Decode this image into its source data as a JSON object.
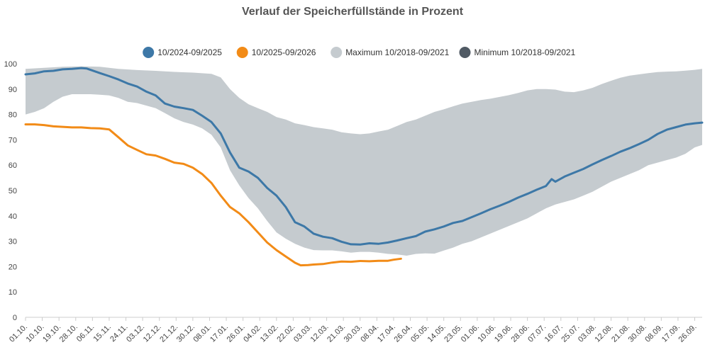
{
  "chart_data": {
    "type": "area",
    "title": "Verlauf der Speicherfüllstände in Prozent",
    "xlabel": "",
    "ylabel": "",
    "ylim": [
      0,
      100
    ],
    "yticks": [
      0,
      10,
      20,
      30,
      40,
      50,
      60,
      70,
      80,
      90,
      100
    ],
    "x_tick_labels": [
      "01.10.",
      "10.10.",
      "19.10.",
      "28.10.",
      "06.11.",
      "15.11.",
      "24.11.",
      "03.12.",
      "12.12.",
      "21.12.",
      "30.12.",
      "08.01.",
      "17.01.",
      "26.01.",
      "04.02.",
      "13.02.",
      "22.02.",
      "03.03.",
      "12.03.",
      "21.03.",
      "30.03.",
      "08.04.",
      "17.04.",
      "26.04.",
      "05.05.",
      "14.05.",
      "23.05.",
      "01.06.",
      "10.06.",
      "19.06.",
      "28.06.",
      "07.07.",
      "16.07.",
      "25.07.",
      "03.08.",
      "12.08.",
      "21.08.",
      "30.08.",
      "08.09.",
      "17.09.",
      "26.09."
    ],
    "x_unit": "day of storage year (0 = 01.10.)",
    "x_max": 364,
    "legend_position": "top-center",
    "grid": false,
    "series": [
      {
        "name": "10/2024-09/2025",
        "color": "#3d78a7",
        "kind": "line",
        "points": [
          [
            0,
            95.8
          ],
          [
            5,
            96.2
          ],
          [
            10,
            97
          ],
          [
            15,
            97.2
          ],
          [
            20,
            97.8
          ],
          [
            25,
            98
          ],
          [
            30,
            98.3
          ],
          [
            33,
            98.1
          ],
          [
            40,
            96.3
          ],
          [
            45,
            95.1
          ],
          [
            50,
            93.8
          ],
          [
            55,
            92.2
          ],
          [
            60,
            91
          ],
          [
            65,
            89
          ],
          [
            70,
            87.5
          ],
          [
            75,
            84.3
          ],
          [
            80,
            83.1
          ],
          [
            85,
            82.5
          ],
          [
            90,
            81.8
          ],
          [
            95,
            79.5
          ],
          [
            100,
            77
          ],
          [
            105,
            72.5
          ],
          [
            110,
            65
          ],
          [
            115,
            59
          ],
          [
            120,
            57.5
          ],
          [
            125,
            55
          ],
          [
            130,
            51
          ],
          [
            135,
            48
          ],
          [
            140,
            43.5
          ],
          [
            145,
            37.5
          ],
          [
            150,
            35.8
          ],
          [
            155,
            33
          ],
          [
            160,
            31.8
          ],
          [
            165,
            31.2
          ],
          [
            170,
            29.8
          ],
          [
            175,
            28.8
          ],
          [
            180,
            28.7
          ],
          [
            185,
            29.2
          ],
          [
            190,
            29
          ],
          [
            195,
            29.5
          ],
          [
            200,
            30.3
          ],
          [
            205,
            31.2
          ],
          [
            210,
            32
          ],
          [
            215,
            33.8
          ],
          [
            220,
            34.7
          ],
          [
            225,
            35.8
          ],
          [
            230,
            37.2
          ],
          [
            235,
            38
          ],
          [
            240,
            39.5
          ],
          [
            245,
            41
          ],
          [
            250,
            42.6
          ],
          [
            255,
            44
          ],
          [
            260,
            45.5
          ],
          [
            265,
            47.2
          ],
          [
            270,
            48.7
          ],
          [
            275,
            50.3
          ],
          [
            280,
            51.8
          ],
          [
            283,
            54.5
          ],
          [
            285,
            53.5
          ],
          [
            290,
            55.5
          ],
          [
            295,
            57
          ],
          [
            300,
            58.5
          ],
          [
            305,
            60.3
          ],
          [
            310,
            62
          ],
          [
            315,
            63.6
          ],
          [
            320,
            65.3
          ],
          [
            325,
            66.7
          ],
          [
            330,
            68.3
          ],
          [
            335,
            70
          ],
          [
            340,
            72.3
          ],
          [
            345,
            74
          ],
          [
            350,
            75
          ],
          [
            355,
            76
          ],
          [
            360,
            76.5
          ],
          [
            364,
            76.8
          ]
        ]
      },
      {
        "name": "10/2025-09/2026",
        "color": "#f28b17",
        "kind": "line",
        "points": [
          [
            0,
            76.1
          ],
          [
            5,
            76.1
          ],
          [
            10,
            75.8
          ],
          [
            15,
            75.3
          ],
          [
            20,
            75.1
          ],
          [
            25,
            74.9
          ],
          [
            30,
            74.9
          ],
          [
            35,
            74.6
          ],
          [
            40,
            74.5
          ],
          [
            45,
            74.1
          ],
          [
            50,
            71
          ],
          [
            55,
            67.8
          ],
          [
            60,
            66
          ],
          [
            65,
            64.3
          ],
          [
            70,
            63.8
          ],
          [
            75,
            62.5
          ],
          [
            80,
            61
          ],
          [
            85,
            60.5
          ],
          [
            90,
            59
          ],
          [
            95,
            56.5
          ],
          [
            100,
            53
          ],
          [
            105,
            48
          ],
          [
            110,
            43.5
          ],
          [
            115,
            41
          ],
          [
            120,
            37.5
          ],
          [
            125,
            33.5
          ],
          [
            130,
            29.5
          ],
          [
            135,
            26.5
          ],
          [
            140,
            24
          ],
          [
            145,
            21.5
          ],
          [
            148,
            20.5
          ],
          [
            152,
            20.6
          ],
          [
            155,
            20.8
          ],
          [
            160,
            21
          ],
          [
            165,
            21.6
          ],
          [
            170,
            22
          ],
          [
            175,
            21.9
          ],
          [
            180,
            22.2
          ],
          [
            185,
            22.1
          ],
          [
            190,
            22.3
          ],
          [
            195,
            22.3
          ],
          [
            198,
            22.7
          ],
          [
            202,
            23.1
          ]
        ]
      },
      {
        "name": "Maximum 10/2018-09/2021",
        "color": "#c5cbcf",
        "kind": "band-upper",
        "points": [
          [
            0,
            98
          ],
          [
            10,
            98.4
          ],
          [
            20,
            98.8
          ],
          [
            30,
            99
          ],
          [
            40,
            98.8
          ],
          [
            50,
            98
          ],
          [
            60,
            97.5
          ],
          [
            70,
            97.2
          ],
          [
            80,
            96.8
          ],
          [
            90,
            96.5
          ],
          [
            100,
            96
          ],
          [
            105,
            94.6
          ],
          [
            110,
            90
          ],
          [
            115,
            86.5
          ],
          [
            120,
            84
          ],
          [
            125,
            82.5
          ],
          [
            130,
            81
          ],
          [
            135,
            79
          ],
          [
            140,
            78
          ],
          [
            145,
            76.5
          ],
          [
            150,
            75.8
          ],
          [
            155,
            75
          ],
          [
            160,
            74.5
          ],
          [
            165,
            74
          ],
          [
            170,
            73
          ],
          [
            175,
            72.5
          ],
          [
            180,
            72.2
          ],
          [
            185,
            72.5
          ],
          [
            190,
            73.3
          ],
          [
            195,
            74
          ],
          [
            200,
            75.5
          ],
          [
            205,
            77
          ],
          [
            210,
            78
          ],
          [
            215,
            79.5
          ],
          [
            220,
            81
          ],
          [
            225,
            82
          ],
          [
            230,
            83.2
          ],
          [
            235,
            84.3
          ],
          [
            240,
            85
          ],
          [
            245,
            85.7
          ],
          [
            250,
            86.2
          ],
          [
            255,
            86.9
          ],
          [
            260,
            87.6
          ],
          [
            265,
            88.5
          ],
          [
            270,
            89.5
          ],
          [
            275,
            90
          ],
          [
            280,
            90
          ],
          [
            285,
            89.8
          ],
          [
            290,
            89
          ],
          [
            295,
            88.8
          ],
          [
            300,
            89.5
          ],
          [
            305,
            90.5
          ],
          [
            310,
            92
          ],
          [
            315,
            93.3
          ],
          [
            320,
            94.5
          ],
          [
            325,
            95.3
          ],
          [
            330,
            95.8
          ],
          [
            335,
            96.3
          ],
          [
            340,
            96.7
          ],
          [
            345,
            96.9
          ],
          [
            350,
            97
          ],
          [
            355,
            97.3
          ],
          [
            360,
            97.6
          ],
          [
            364,
            98
          ]
        ]
      },
      {
        "name": "Minimum 10/2018-09/2021",
        "color": "#505a64",
        "kind": "band-lower",
        "points": [
          [
            0,
            80
          ],
          [
            5,
            81
          ],
          [
            10,
            82.5
          ],
          [
            15,
            85
          ],
          [
            20,
            87
          ],
          [
            25,
            88
          ],
          [
            30,
            88
          ],
          [
            35,
            88
          ],
          [
            40,
            87.8
          ],
          [
            45,
            87.5
          ],
          [
            50,
            86.5
          ],
          [
            55,
            85
          ],
          [
            60,
            84.5
          ],
          [
            65,
            83.5
          ],
          [
            70,
            82.5
          ],
          [
            75,
            80.5
          ],
          [
            80,
            78.5
          ],
          [
            85,
            77
          ],
          [
            90,
            76
          ],
          [
            95,
            74.5
          ],
          [
            100,
            72
          ],
          [
            105,
            67
          ],
          [
            110,
            58
          ],
          [
            115,
            52
          ],
          [
            120,
            47
          ],
          [
            125,
            43
          ],
          [
            130,
            38
          ],
          [
            135,
            33.5
          ],
          [
            140,
            31
          ],
          [
            145,
            29
          ],
          [
            150,
            27.5
          ],
          [
            155,
            26.5
          ],
          [
            160,
            26.4
          ],
          [
            165,
            26.4
          ],
          [
            170,
            26
          ],
          [
            175,
            25.5
          ],
          [
            180,
            25.8
          ],
          [
            185,
            25.8
          ],
          [
            190,
            25.5
          ],
          [
            195,
            25
          ],
          [
            200,
            24.8
          ],
          [
            205,
            24.3
          ],
          [
            210,
            25
          ],
          [
            215,
            25.2
          ],
          [
            220,
            25.1
          ],
          [
            225,
            26.3
          ],
          [
            230,
            27.5
          ],
          [
            235,
            29
          ],
          [
            240,
            30
          ],
          [
            245,
            31.5
          ],
          [
            250,
            33
          ],
          [
            255,
            34.5
          ],
          [
            260,
            36
          ],
          [
            265,
            37.5
          ],
          [
            270,
            39
          ],
          [
            275,
            41
          ],
          [
            280,
            43
          ],
          [
            285,
            44.5
          ],
          [
            290,
            45.5
          ],
          [
            295,
            46.5
          ],
          [
            300,
            48
          ],
          [
            305,
            49.5
          ],
          [
            310,
            51.5
          ],
          [
            315,
            53.5
          ],
          [
            320,
            55
          ],
          [
            325,
            56.5
          ],
          [
            330,
            58
          ],
          [
            335,
            60
          ],
          [
            340,
            61
          ],
          [
            345,
            62
          ],
          [
            350,
            63
          ],
          [
            355,
            64.5
          ],
          [
            360,
            67
          ],
          [
            364,
            68
          ]
        ]
      }
    ]
  }
}
